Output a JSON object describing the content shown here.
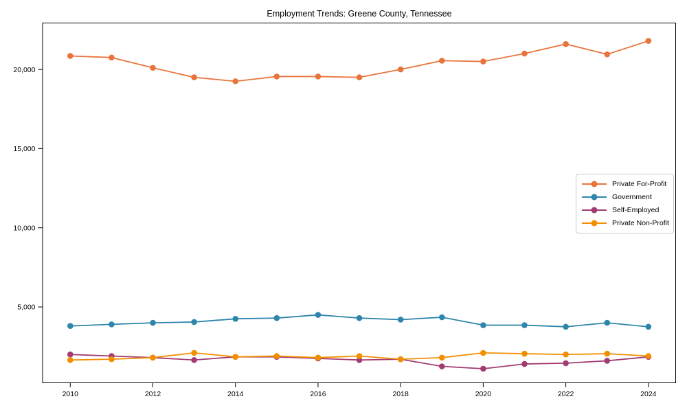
{
  "title": "Employment Trends: Greene County, Tennessee",
  "chart_data": {
    "type": "line",
    "title": "Employment Trends: Greene County, Tennessee",
    "x": [
      2010,
      2011,
      2012,
      2013,
      2014,
      2015,
      2016,
      2017,
      2018,
      2019,
      2020,
      2021,
      2022,
      2023,
      2024
    ],
    "series": [
      {
        "name": "Private For-Profit",
        "color": "#E8743B",
        "values": [
          20850,
          20750,
          20100,
          19500,
          19250,
          19550,
          19550,
          19500,
          20000,
          20550,
          20500,
          21000,
          21600,
          20950,
          21800
        ]
      },
      {
        "name": "Government",
        "color": "#2E86AB",
        "values": [
          3800,
          3900,
          4000,
          4050,
          4250,
          4300,
          4500,
          4300,
          4200,
          4350,
          3850,
          3850,
          3750,
          4000,
          3750
        ]
      },
      {
        "name": "Self-Employed",
        "color": "#A23B72",
        "values": [
          2000,
          1900,
          1800,
          1650,
          1850,
          1850,
          1750,
          1650,
          1700,
          1250,
          1100,
          1400,
          1450,
          1600,
          1850
        ]
      },
      {
        "name": "Private Non-Profit",
        "color": "#F18F01",
        "values": [
          1650,
          1700,
          1800,
          2100,
          1850,
          1900,
          1800,
          1900,
          1700,
          1800,
          2100,
          2050,
          2000,
          2050,
          1900
        ]
      }
    ],
    "xticks": [
      {
        "value": 2010,
        "label": "2010"
      },
      {
        "value": 2012,
        "label": "2012"
      },
      {
        "value": 2014,
        "label": "2014"
      },
      {
        "value": 2016,
        "label": "2016"
      },
      {
        "value": 2018,
        "label": "2018"
      },
      {
        "value": 2020,
        "label": "2020"
      },
      {
        "value": 2022,
        "label": "2022"
      },
      {
        "value": 2024,
        "label": "2024"
      }
    ],
    "yticks": [
      {
        "value": 5000,
        "label": "5,000"
      },
      {
        "value": 10000,
        "label": "10,000"
      },
      {
        "value": 15000,
        "label": "15,000"
      },
      {
        "value": 20000,
        "label": "20,000"
      }
    ],
    "xlim": [
      2009.33,
      2024.66
    ],
    "ylim": [
      210,
      22930
    ],
    "grid": false,
    "legend_position": "center-right"
  }
}
